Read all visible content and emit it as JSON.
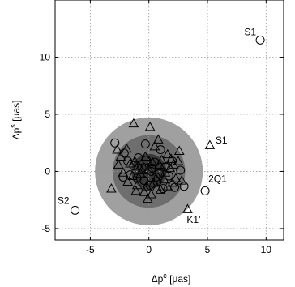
{
  "chart_data": {
    "type": "scatter",
    "xlabel": "Δp^c [μas]",
    "ylabel": "Δp^s [μas]",
    "xlim": [
      -8,
      11.5
    ],
    "ylim": [
      -6,
      15
    ],
    "xticks": [
      -5,
      0,
      5,
      10
    ],
    "yticks": [
      -5,
      0,
      5,
      10
    ],
    "grid": true,
    "regions": [
      {
        "shape": "circle",
        "center": [
          0,
          0
        ],
        "radius": 4.6,
        "color": "#a0a0a0"
      },
      {
        "shape": "circle",
        "center": [
          0,
          0
        ],
        "radius": 3.1,
        "color": "#6e6e6e"
      },
      {
        "shape": "circle",
        "center": [
          0,
          0
        ],
        "radius": 1.5,
        "color": "#3a3a3a"
      }
    ],
    "series": [
      {
        "marker": "circle",
        "x": [
          9.5,
          -6.3,
          4.8,
          3.0,
          2.7,
          2.2,
          -2.9,
          -2.1,
          -1.8,
          -0.3,
          0.5,
          1.0,
          1.4,
          -1.0,
          -1.6,
          -0.6,
          0.1,
          0.7,
          1.7,
          2.0,
          -2.2,
          -0.9,
          0.3,
          0.9,
          -0.4,
          -1.3,
          0.2,
          1.2,
          -0.2,
          0.6
        ],
        "y": [
          11.5,
          -3.4,
          -1.7,
          -1.3,
          0.1,
          -1.4,
          2.5,
          1.6,
          0.9,
          2.4,
          0.8,
          1.9,
          0.4,
          -0.6,
          -0.3,
          0.3,
          -1.2,
          -0.9,
          -0.4,
          0.9,
          -0.5,
          1.2,
          0.3,
          -0.2,
          -0.8,
          0.5,
          0.0,
          -1.5,
          1.0,
          -0.5
        ]
      },
      {
        "marker": "triangle",
        "x": [
          5.2,
          3.3,
          -1.3,
          -0.6,
          0.1,
          0.8,
          2.6,
          1.6,
          2.1,
          -2.7,
          -2.4,
          -1.9,
          -1.2,
          -0.3,
          0.5,
          1.1,
          1.8,
          -2.6,
          -1.6,
          -0.9,
          0.3,
          0.9,
          1.4,
          2.3,
          -2.2,
          -1.4,
          -0.7,
          0.0,
          0.6,
          1.3,
          2.0,
          2.8,
          -1.8,
          -1.0,
          -0.2,
          0.4,
          1.0,
          1.6,
          -1.1,
          -0.4,
          0.2,
          0.7,
          -3.2,
          1.9,
          2.5,
          -0.1
        ],
        "y": [
          2.3,
          -3.3,
          4.2,
          0.1,
          3.9,
          2.8,
          1.8,
          1.5,
          0.6,
          1.9,
          1.3,
          2.0,
          0.9,
          1.3,
          2.2,
          1.0,
          0.3,
          0.6,
          0.7,
          0.5,
          0.8,
          0.6,
          -0.1,
          -0.6,
          -0.1,
          -0.4,
          -0.2,
          0.2,
          -0.6,
          -0.7,
          -1.0,
          -0.8,
          -0.9,
          -1.2,
          -1.3,
          -1.0,
          -1.6,
          -1.3,
          -1.7,
          -1.8,
          -2.0,
          -1.4,
          -1.5,
          1.1,
          0.9,
          -2.4
        ]
      }
    ],
    "annotations": [
      {
        "text": "S1",
        "x": 9.5,
        "y": 11.5
      },
      {
        "text": "S1",
        "x": 5.2,
        "y": 2.3
      },
      {
        "text": "2Q1",
        "x": 4.8,
        "y": -1.7
      },
      {
        "text": "S2",
        "x": -6.3,
        "y": -3.4
      },
      {
        "text": "K1'",
        "x": 3.3,
        "y": -3.3
      }
    ]
  }
}
